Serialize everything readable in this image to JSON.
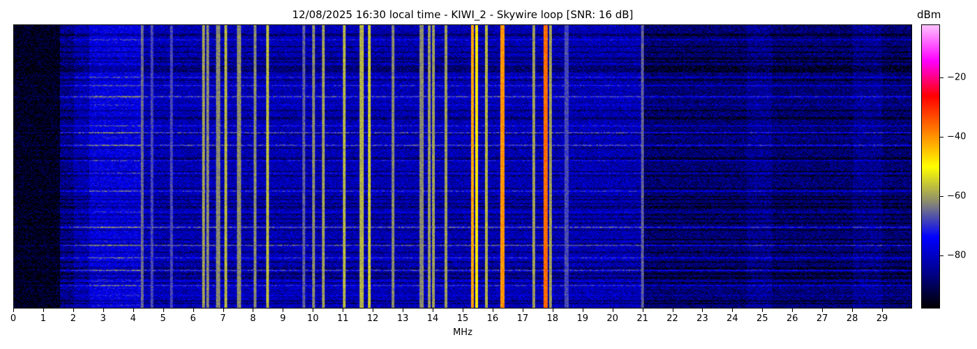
{
  "chart_data": {
    "type": "heatmap",
    "title": "12/08/2025 16:30 local time - KIWI_2 - Skywire loop [SNR: 16 dB]",
    "xlabel": "MHz",
    "xlim": [
      0,
      30
    ],
    "xticks": [
      0,
      1,
      2,
      3,
      4,
      5,
      6,
      7,
      8,
      9,
      10,
      11,
      12,
      13,
      14,
      15,
      16,
      17,
      18,
      19,
      20,
      21,
      22,
      23,
      24,
      25,
      26,
      27,
      28,
      29
    ],
    "yticks": [],
    "colorbar": {
      "label": "dBm",
      "range": [
        -98,
        -2
      ],
      "ticks": [
        -20,
        -40,
        -60,
        -80
      ],
      "colormap": [
        "#000000",
        "#00008b",
        "#0000ff",
        "#8a8a70",
        "#ffff00",
        "#ff8000",
        "#ff0000",
        "#ff00ff",
        "#ffc0ff"
      ]
    },
    "noise_floor_dBm": {
      "below_1.5MHz": -95,
      "1.5_to_21MHz": -82,
      "above_21MHz": -88
    },
    "carriers": [
      {
        "mhz": 4.25,
        "dbm": -65
      },
      {
        "mhz": 4.6,
        "dbm": -68
      },
      {
        "mhz": 5.25,
        "dbm": -68
      },
      {
        "mhz": 6.3,
        "dbm": -60
      },
      {
        "mhz": 6.45,
        "dbm": -62
      },
      {
        "mhz": 6.8,
        "dbm": -62
      },
      {
        "mhz": 7.05,
        "dbm": -58
      },
      {
        "mhz": 7.5,
        "dbm": -62
      },
      {
        "mhz": 8.05,
        "dbm": -62
      },
      {
        "mhz": 8.45,
        "dbm": -57
      },
      {
        "mhz": 9.65,
        "dbm": -66
      },
      {
        "mhz": 10.0,
        "dbm": -62
      },
      {
        "mhz": 10.3,
        "dbm": -60
      },
      {
        "mhz": 11.0,
        "dbm": -58
      },
      {
        "mhz": 11.6,
        "dbm": -58
      },
      {
        "mhz": 11.85,
        "dbm": -56
      },
      {
        "mhz": 12.65,
        "dbm": -62
      },
      {
        "mhz": 13.6,
        "dbm": -62
      },
      {
        "mhz": 13.85,
        "dbm": -60
      },
      {
        "mhz": 14.0,
        "dbm": -60
      },
      {
        "mhz": 14.4,
        "dbm": -60
      },
      {
        "mhz": 15.3,
        "dbm": -42
      },
      {
        "mhz": 15.45,
        "dbm": -48
      },
      {
        "mhz": 15.75,
        "dbm": -58
      },
      {
        "mhz": 16.3,
        "dbm": -40
      },
      {
        "mhz": 17.35,
        "dbm": -60
      },
      {
        "mhz": 17.75,
        "dbm": -36
      },
      {
        "mhz": 17.9,
        "dbm": -60
      },
      {
        "mhz": 18.45,
        "dbm": -68
      },
      {
        "mhz": 21.0,
        "dbm": -66
      }
    ]
  }
}
